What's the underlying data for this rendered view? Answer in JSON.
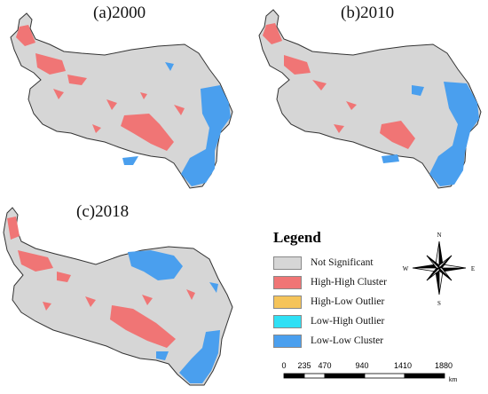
{
  "panels": [
    {
      "id": "a",
      "title": "(a)2000"
    },
    {
      "id": "b",
      "title": "(b)2010"
    },
    {
      "id": "c",
      "title": "(c)2018"
    }
  ],
  "legend": {
    "title": "Legend",
    "items": [
      {
        "label": "Not Significant",
        "color": "#d6d6d6"
      },
      {
        "label": "High-High Cluster",
        "color": "#f07575"
      },
      {
        "label": "High-Low Outlier",
        "color": "#f5c45a"
      },
      {
        "label": "Low-High Outlier",
        "color": "#2fe0f5"
      },
      {
        "label": "Low-Low Cluster",
        "color": "#4a9fee"
      }
    ]
  },
  "compass": {
    "n": "N",
    "s": "S",
    "e": "E",
    "w": "W"
  },
  "scalebar": {
    "ticks": [
      "0",
      "235",
      "470",
      "940",
      "1410",
      "1880"
    ],
    "unit": "km"
  },
  "colors": {
    "map_base": "#d6d6d6",
    "outline": "#333333",
    "high_high": "#f07575",
    "low_low": "#4a9fee"
  }
}
